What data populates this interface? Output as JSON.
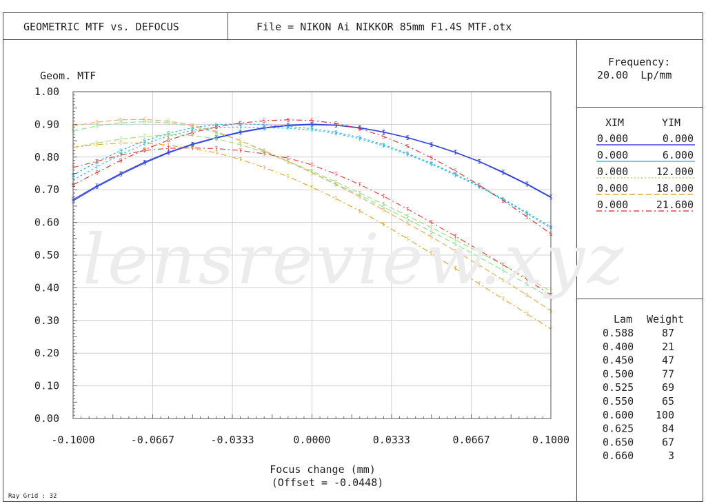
{
  "header": {
    "title": "GEOMETRIC MTF vs. DEFOCUS",
    "file": "File = NIKON Ai NIKKOR 85mm F1.4S MTF.otx"
  },
  "watermark": "lensreview.xyz",
  "frequency": {
    "label": "Frequency:",
    "value": "20.00  Lp/mm"
  },
  "fields": {
    "headers": [
      "XIM",
      "YIM"
    ],
    "rows": [
      {
        "xim": "0.000",
        "yim": "0.000",
        "color": "#3f3fe0",
        "style": "solid"
      },
      {
        "xim": "0.000",
        "yim": "6.000",
        "color": "#30c8d8",
        "style": "solid"
      },
      {
        "xim": "0.000",
        "yim": "12.000",
        "color": "#b9d86a",
        "style": "dotted"
      },
      {
        "xim": "0.000",
        "yim": "18.000",
        "color": "#e0a838",
        "style": "dashed"
      },
      {
        "xim": "0.000",
        "yim": "21.600",
        "color": "#e04848",
        "style": "dashdot"
      }
    ]
  },
  "wavelengths": {
    "headers": [
      "Lam",
      "Weight"
    ],
    "rows": [
      [
        "0.588",
        "87"
      ],
      [
        "0.400",
        "21"
      ],
      [
        "0.450",
        "47"
      ],
      [
        "0.500",
        "77"
      ],
      [
        "0.525",
        "69"
      ],
      [
        "0.550",
        "65"
      ],
      [
        "0.600",
        "100"
      ],
      [
        "0.625",
        "84"
      ],
      [
        "0.650",
        "67"
      ],
      [
        "0.660",
        "3"
      ]
    ]
  },
  "footer": {
    "ray_grid": "Ray Grid : 32"
  },
  "chart_data": {
    "type": "line",
    "ylabel": "Geom. MTF",
    "xlabel": "Focus change (mm)",
    "xlabel2": "(Offset = -0.0448)",
    "xlim": [
      -0.1,
      0.1
    ],
    "ylim": [
      0,
      1
    ],
    "xticks": [
      -0.1,
      -0.0667,
      -0.0333,
      0.0,
      0.0333,
      0.0667,
      0.1
    ],
    "xtick_labels": [
      "-0.1000",
      "-0.0667",
      "-0.0333",
      "0.0000",
      "0.0333",
      "0.0667",
      "0.1000"
    ],
    "yticks": [
      0,
      0.1,
      0.2,
      0.3,
      0.4,
      0.5,
      0.6,
      0.7,
      0.8,
      0.9,
      1.0
    ],
    "ytick_labels": [
      "0.00",
      "0.10",
      "0.20",
      "0.30",
      "0.40",
      "0.50",
      "0.60",
      "0.70",
      "0.80",
      "0.90",
      "1.00"
    ],
    "grid": true,
    "x": [
      -0.1,
      -0.09,
      -0.08,
      -0.07,
      -0.06,
      -0.05,
      -0.04,
      -0.03,
      -0.02,
      -0.01,
      0.0,
      0.01,
      0.02,
      0.03,
      0.04,
      0.05,
      0.06,
      0.07,
      0.08,
      0.09,
      0.1
    ],
    "series": [
      {
        "color": "#3f3fe0",
        "dash": "",
        "marker": "T",
        "values": [
          0.67,
          0.712,
          0.75,
          0.785,
          0.815,
          0.84,
          0.86,
          0.877,
          0.89,
          0.898,
          0.901,
          0.898,
          0.89,
          0.877,
          0.86,
          0.839,
          0.815,
          0.787,
          0.754,
          0.718,
          0.678
        ]
      },
      {
        "color": "#2a4ad8",
        "dash": "",
        "marker": "S",
        "values": [
          0.666,
          0.709,
          0.747,
          0.782,
          0.813,
          0.838,
          0.858,
          0.875,
          0.888,
          0.896,
          0.899,
          0.897,
          0.889,
          0.876,
          0.859,
          0.838,
          0.814,
          0.786,
          0.752,
          0.716,
          0.676
        ]
      },
      {
        "color": "#30c8d8",
        "dash": "3,3",
        "marker": "T",
        "values": [
          0.73,
          0.77,
          0.808,
          0.84,
          0.865,
          0.882,
          0.891,
          0.892,
          0.89,
          0.888,
          0.883,
          0.872,
          0.856,
          0.834,
          0.808,
          0.778,
          0.745,
          0.709,
          0.669,
          0.627,
          0.582
        ]
      },
      {
        "color": "#3aa8e8",
        "dash": "3,3",
        "marker": "S",
        "values": [
          0.745,
          0.785,
          0.82,
          0.85,
          0.873,
          0.89,
          0.899,
          0.902,
          0.899,
          0.894,
          0.887,
          0.876,
          0.86,
          0.838,
          0.811,
          0.781,
          0.748,
          0.712,
          0.672,
          0.63,
          0.587
        ]
      },
      {
        "color": "#a8dc78",
        "dash": "8,4",
        "marker": "T",
        "values": [
          0.83,
          0.843,
          0.855,
          0.863,
          0.868,
          0.866,
          0.856,
          0.838,
          0.815,
          0.787,
          0.757,
          0.724,
          0.69,
          0.656,
          0.62,
          0.584,
          0.547,
          0.509,
          0.47,
          0.43,
          0.39
        ]
      },
      {
        "color": "#90e0a0",
        "dash": "8,4",
        "marker": "S",
        "values": [
          0.88,
          0.895,
          0.905,
          0.908,
          0.905,
          0.894,
          0.875,
          0.85,
          0.82,
          0.787,
          0.753,
          0.718,
          0.683,
          0.647,
          0.61,
          0.572,
          0.534,
          0.494,
          0.453,
          0.411,
          0.368
        ]
      },
      {
        "color": "#e0a838",
        "dash": "8,4,2,4",
        "marker": "T",
        "values": [
          0.83,
          0.838,
          0.843,
          0.843,
          0.836,
          0.826,
          0.813,
          0.793,
          0.768,
          0.74,
          0.708,
          0.673,
          0.635,
          0.594,
          0.55,
          0.505,
          0.459,
          0.412,
          0.366,
          0.32,
          0.274
        ]
      },
      {
        "color": "#e8b060",
        "dash": "8,4",
        "marker": "S",
        "values": [
          0.895,
          0.907,
          0.914,
          0.915,
          0.91,
          0.898,
          0.878,
          0.85,
          0.818,
          0.786,
          0.752,
          0.716,
          0.678,
          0.638,
          0.597,
          0.556,
          0.513,
          0.469,
          0.424,
          0.378,
          0.33
        ]
      },
      {
        "color": "#e04848",
        "dash": "8,4,2,4",
        "marker": "T",
        "values": [
          0.768,
          0.787,
          0.806,
          0.82,
          0.827,
          0.828,
          0.826,
          0.82,
          0.81,
          0.797,
          0.776,
          0.748,
          0.716,
          0.68,
          0.641,
          0.6,
          0.558,
          0.515,
          0.47,
          0.425,
          0.378
        ]
      },
      {
        "color": "#d83838",
        "dash": "8,4,2,4",
        "marker": "S",
        "values": [
          0.715,
          0.753,
          0.79,
          0.823,
          0.852,
          0.875,
          0.892,
          0.904,
          0.911,
          0.914,
          0.912,
          0.903,
          0.887,
          0.863,
          0.833,
          0.798,
          0.758,
          0.714,
          0.667,
          0.617,
          0.565
        ]
      }
    ]
  }
}
